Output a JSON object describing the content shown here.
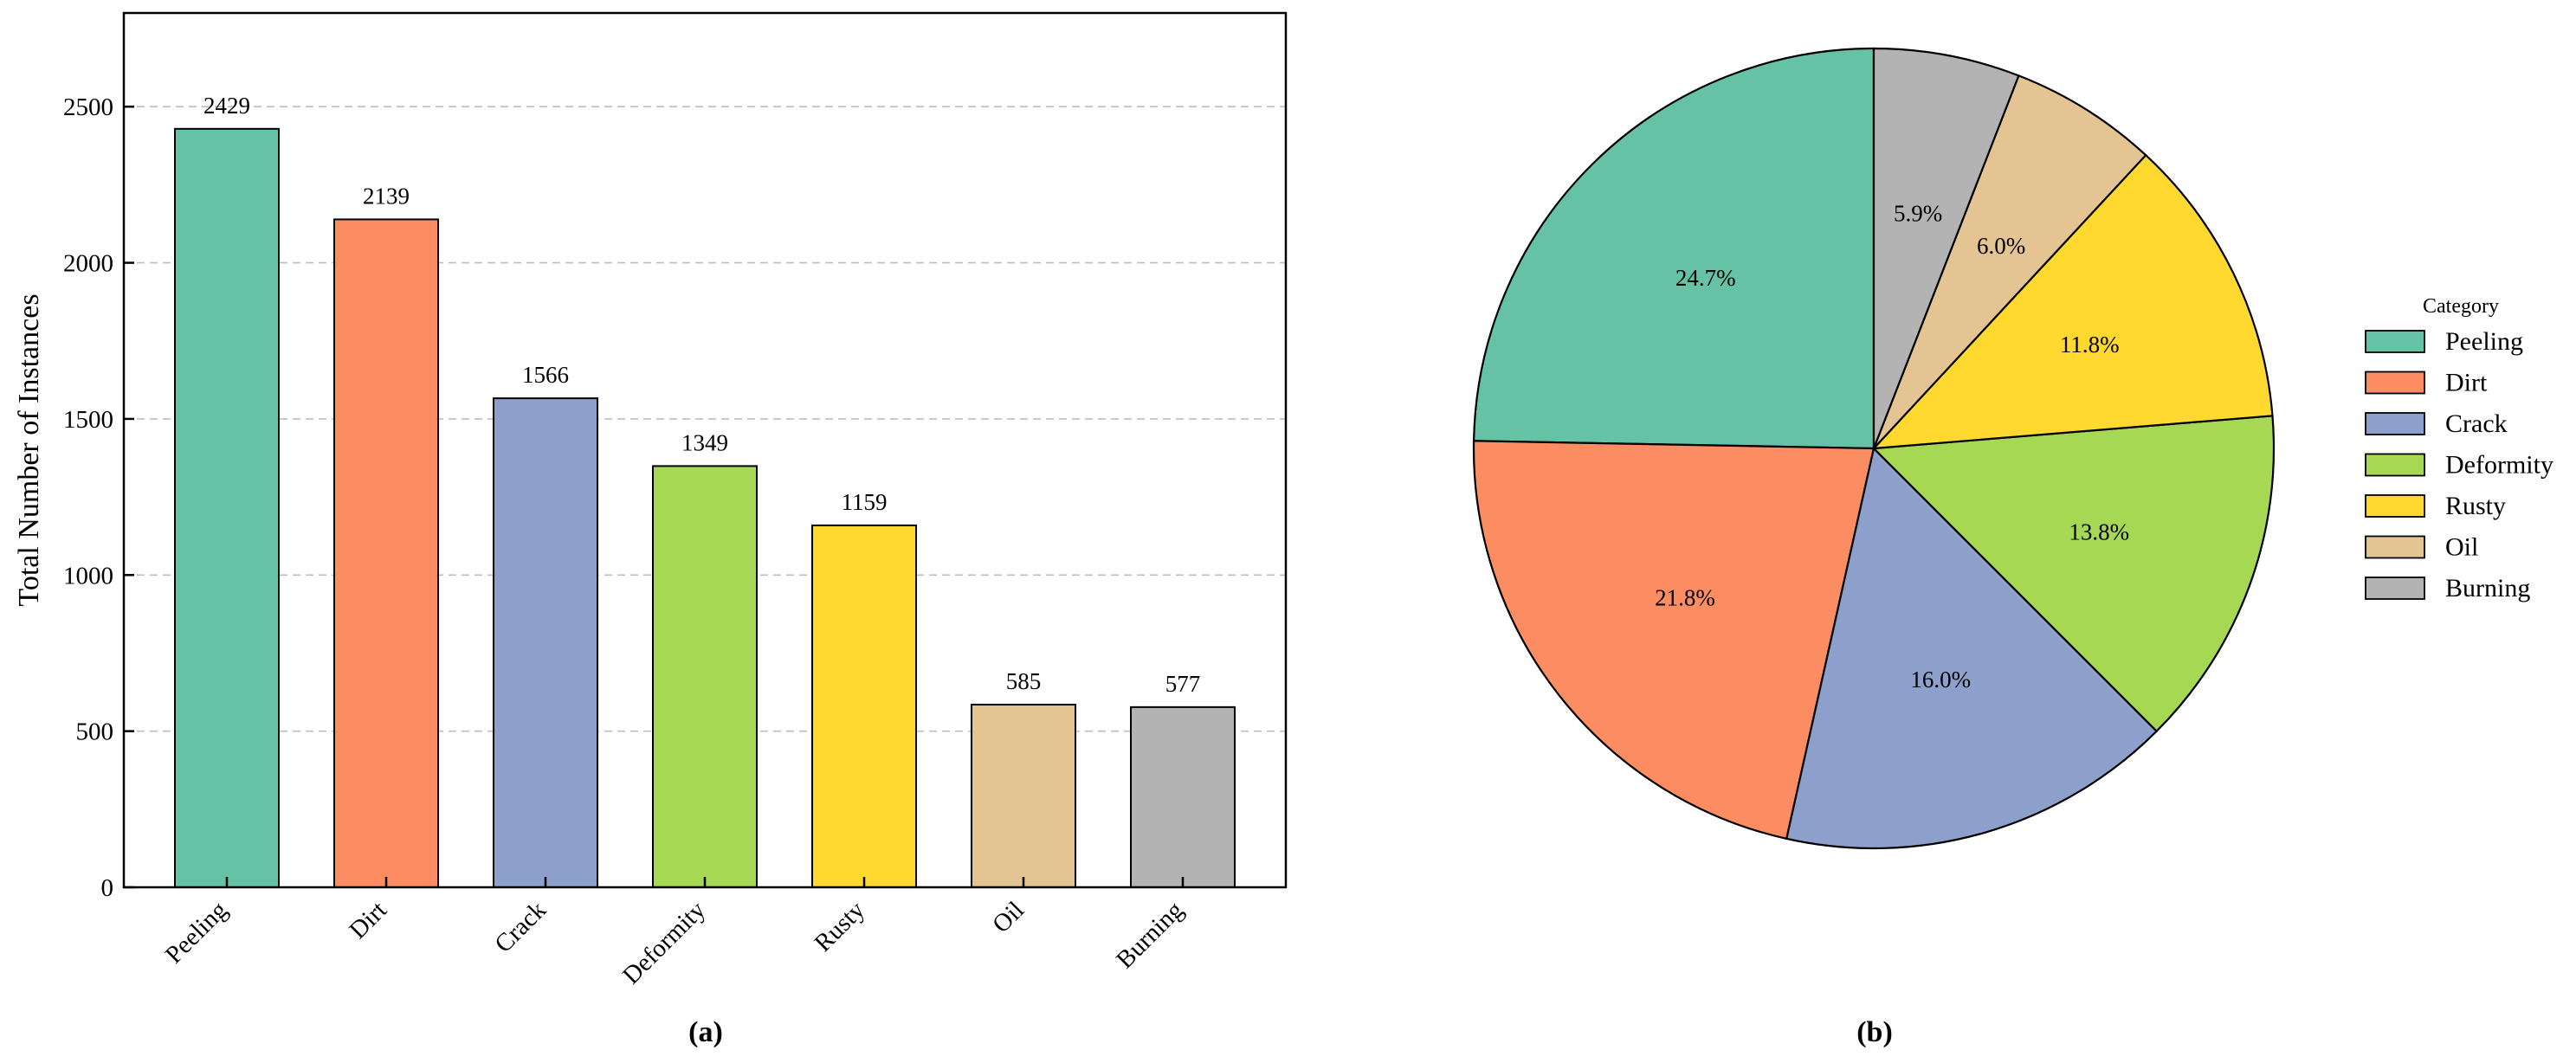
{
  "colors": {
    "Peeling": "#66c2a5",
    "Dirt": "#fc8d62",
    "Crack": "#8da0cb",
    "Deformity": "#a6d854",
    "Rusty": "#ffd92f",
    "Oil": "#e5c494",
    "Burning": "#b3b3b3"
  },
  "chart_data": [
    {
      "type": "bar",
      "panel_label": "(a)",
      "categories": [
        "Peeling",
        "Dirt",
        "Crack",
        "Deformity",
        "Rusty",
        "Oil",
        "Burning"
      ],
      "values": [
        2429,
        2139,
        1566,
        1349,
        1159,
        585,
        577
      ],
      "value_labels": [
        "2429",
        "2139",
        "1566",
        "1349",
        "1159",
        "585",
        "577"
      ],
      "title": "",
      "xlabel": "",
      "ylabel": "Total Number of Instances",
      "ylim": [
        0,
        2800
      ],
      "yticks": [
        0,
        500,
        1000,
        1500,
        2000,
        2500
      ],
      "ytick_labels": [
        "0",
        "500",
        "1000",
        "1500",
        "2000",
        "2500"
      ],
      "grid": "horizontal dashed"
    },
    {
      "type": "pie",
      "panel_label": "(b)",
      "categories": [
        "Peeling",
        "Dirt",
        "Crack",
        "Deformity",
        "Rusty",
        "Oil",
        "Burning"
      ],
      "values": [
        24.7,
        21.8,
        16.0,
        13.8,
        11.8,
        6.0,
        5.9
      ],
      "value_labels": [
        "24.7%",
        "21.8%",
        "16.0%",
        "13.8%",
        "11.8%",
        "6.0%",
        "5.9%"
      ],
      "legend_title": "Category",
      "legend_entries": [
        "Peeling",
        "Dirt",
        "Crack",
        "Deformity",
        "Rusty",
        "Oil",
        "Burning"
      ],
      "legend_placement": "right"
    }
  ]
}
